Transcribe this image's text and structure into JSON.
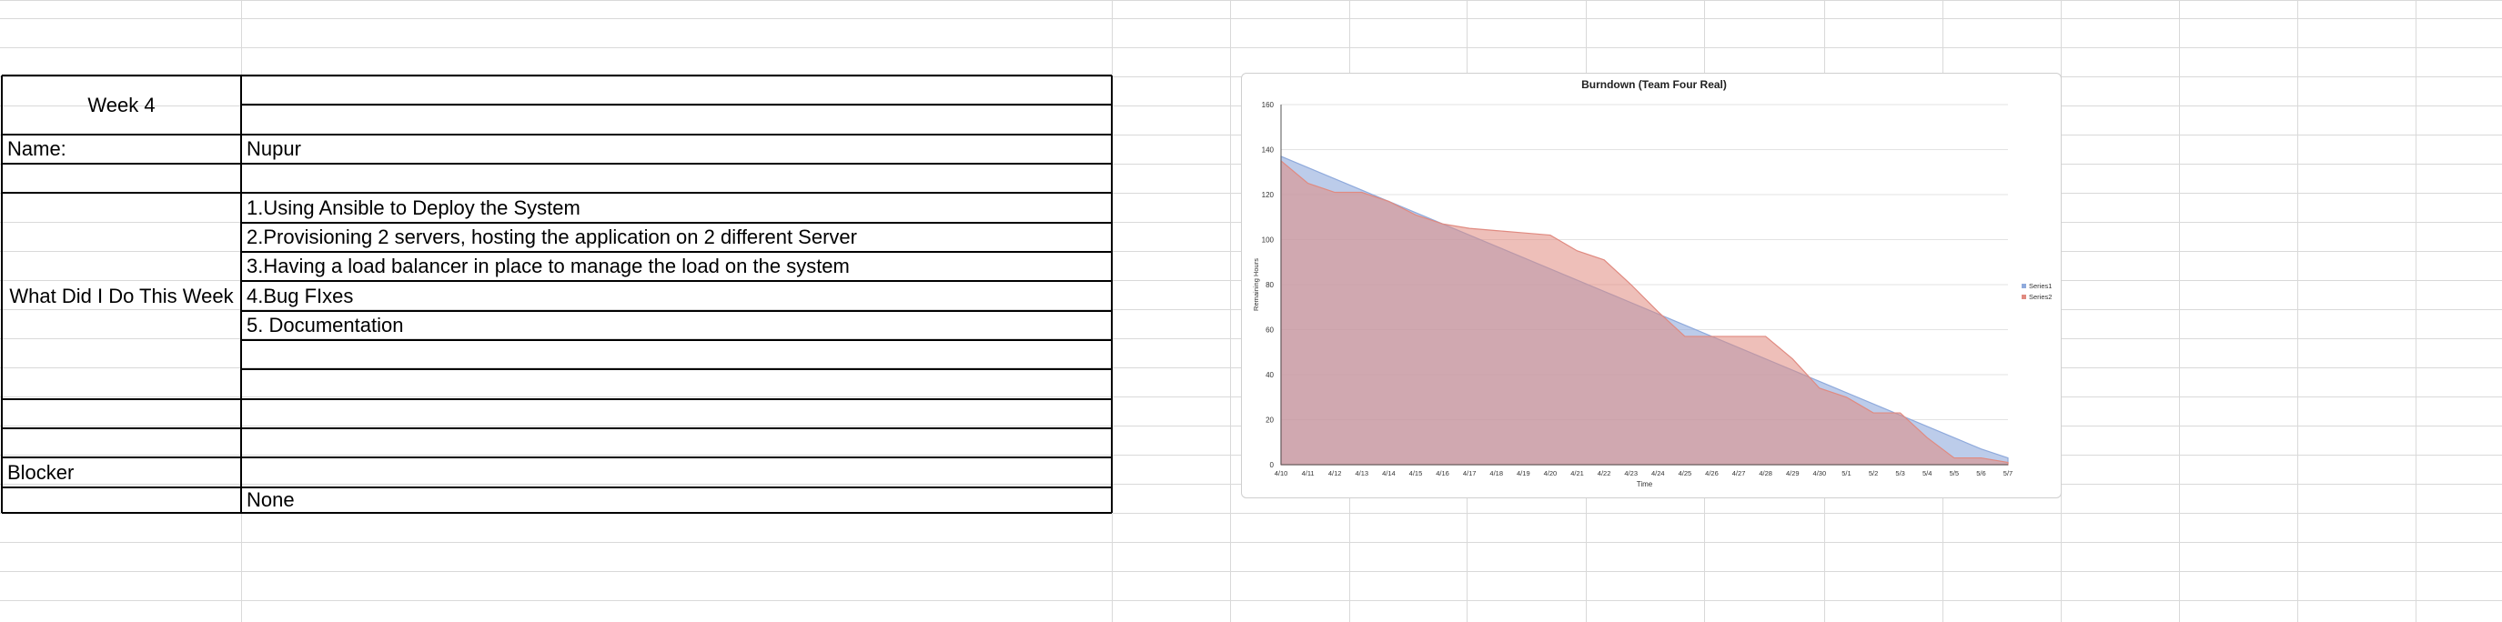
{
  "sheet": {
    "week_label": "Week 4",
    "name_label": "Name:",
    "name_value": "Nupur",
    "section_label": "What Did I Do This Week",
    "items": [
      "1.Using Ansible to Deploy the System",
      "2.Provisioning 2 servers, hosting the application on 2 different Server",
      "3.Having a load balancer in place to manage the load on the system",
      "4.Bug FIxes",
      "5. Documentation"
    ],
    "blocker_label": "Blocker",
    "blocker_value": "None"
  },
  "chart_data": {
    "type": "area",
    "title": "Burndown (Team Four Real)",
    "xlabel": "Time",
    "ylabel": "Remaining Hours",
    "ylim": [
      0,
      160
    ],
    "yticks": [
      0,
      20,
      40,
      60,
      80,
      100,
      120,
      140,
      160
    ],
    "grid": true,
    "legend_position": "right",
    "categories": [
      "4/10",
      "4/11",
      "4/12",
      "4/13",
      "4/14",
      "4/15",
      "4/16",
      "4/17",
      "4/18",
      "4/19",
      "4/20",
      "4/21",
      "4/22",
      "4/23",
      "4/24",
      "4/25",
      "4/26",
      "4/27",
      "4/28",
      "4/29",
      "4/30",
      "5/1",
      "5/2",
      "5/3",
      "5/4",
      "5/5",
      "5/6",
      "5/7"
    ],
    "series": [
      {
        "name": "Series1",
        "color": "#8faadc",
        "values": [
          137,
          132,
          127,
          122,
          117,
          112,
          107,
          102,
          97,
          92,
          87,
          82,
          77,
          72,
          67,
          62,
          57,
          52,
          47,
          42,
          37,
          32,
          27,
          22,
          17,
          12,
          7,
          3
        ]
      },
      {
        "name": "Series2",
        "color": "#e08a80",
        "values": [
          135,
          125,
          121,
          121,
          117,
          111,
          107,
          105,
          104,
          103,
          102,
          95,
          91,
          80,
          68,
          57,
          57,
          57,
          57,
          47,
          34,
          30,
          23,
          23,
          12,
          3,
          3,
          1
        ]
      }
    ]
  }
}
